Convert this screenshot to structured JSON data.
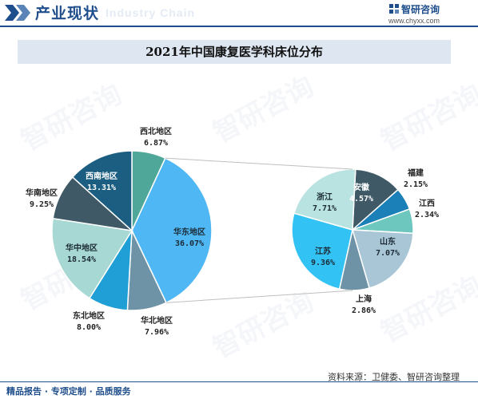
{
  "header": {
    "section_title": "产业现状",
    "ghost_text": "Industry Chain",
    "brand": "智研咨询",
    "url": "www.chyxx.com"
  },
  "footer": {
    "left": "精品报告 · 专项定制 · 品质服务",
    "source": "资料来源：卫健委、智研咨询整理"
  },
  "watermark": "智研咨询",
  "chart_data": [
    {
      "type": "pie",
      "title": "2021年中国康复医学科床位分布",
      "slices": [
        {
          "name": "西北地区",
          "value": 6.87,
          "label": "6.87%",
          "color": "#4fa79a"
        },
        {
          "name": "华东地区",
          "value": 36.07,
          "label": "36.07%",
          "color": "#4fb7f3"
        },
        {
          "name": "华北地区",
          "value": 7.96,
          "label": "7.96%",
          "color": "#6f93a6"
        },
        {
          "name": "东北地区",
          "value": 8.0,
          "label": "8.00%",
          "color": "#1f9fd6"
        },
        {
          "name": "华中地区",
          "value": 18.54,
          "label": "18.54%",
          "color": "#a8d8d3"
        },
        {
          "name": "华南地区",
          "value": 9.25,
          "label": "9.25%",
          "color": "#3f5a66"
        },
        {
          "name": "西南地区",
          "value": 13.31,
          "label": "13.31%",
          "color": "#1b5e82"
        }
      ]
    },
    {
      "type": "pie",
      "title": "华东地区",
      "slices": [
        {
          "name": "安徽",
          "value": 4.57,
          "label": "4.57%",
          "color": "#3f5a66"
        },
        {
          "name": "福建",
          "value": 2.15,
          "label": "2.15%",
          "color": "#1b7fb8"
        },
        {
          "name": "江西",
          "value": 2.34,
          "label": "2.34%",
          "color": "#6ec7be"
        },
        {
          "name": "山东",
          "value": 7.07,
          "label": "7.07%",
          "color": "#a9c6d6"
        },
        {
          "name": "上海",
          "value": 2.86,
          "label": "2.86%",
          "color": "#6f93a6"
        },
        {
          "name": "江苏",
          "value": 9.36,
          "label": "9.36%",
          "color": "#33c2f4"
        },
        {
          "name": "浙江",
          "value": 7.71,
          "label": "7.71%",
          "color": "#b8e3e0"
        }
      ]
    }
  ]
}
